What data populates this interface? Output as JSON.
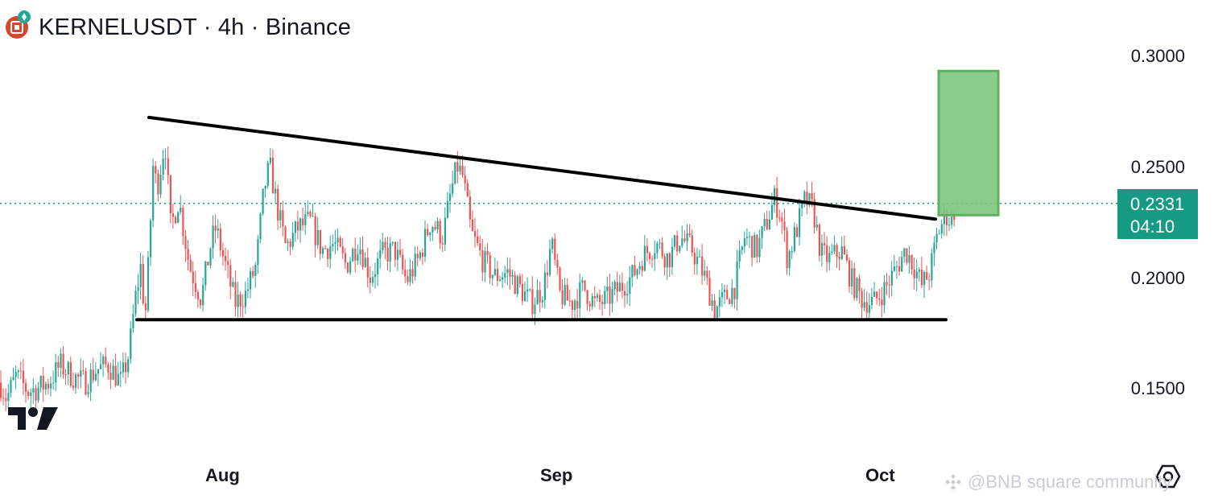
{
  "header": {
    "title": "KERNELUSDT · 4h · Binance"
  },
  "price_axis": {
    "ticks": [
      "0.3000",
      "0.2500",
      "0.2000",
      "0.1500"
    ]
  },
  "time_axis": {
    "ticks": [
      "Aug",
      "Sep",
      "Oct"
    ]
  },
  "last_price": {
    "price": "0.2331",
    "countdown": "04:10"
  },
  "watermark": {
    "text": "@BNB square community"
  },
  "icons": {
    "symbol": "kernel-logo-icon",
    "exchange_badge": "binance-badge-icon",
    "tradingview": "tradingview-logo-icon",
    "settings": "settings-hexagon-icon"
  },
  "colors": {
    "up": "#26a69a",
    "down": "#ef5350",
    "last_price_bg": "#169a83",
    "target_box": "#6cc070",
    "trendline": "#000000"
  },
  "chart_data": {
    "type": "candlestick",
    "symbol": "KERNELUSDT",
    "interval": "4h",
    "exchange": "Binance",
    "y_range": [
      0.12,
      0.31
    ],
    "last_price": 0.2331,
    "x_ticks": [
      "Aug",
      "Sep",
      "Oct"
    ],
    "y_ticks": [
      0.3,
      0.25,
      0.2,
      0.15
    ],
    "price_path": [
      [
        0,
        0.152
      ],
      [
        8,
        0.145
      ],
      [
        20,
        0.155
      ],
      [
        35,
        0.148
      ],
      [
        50,
        0.15
      ],
      [
        60,
        0.152
      ],
      [
        75,
        0.16
      ],
      [
        90,
        0.155
      ],
      [
        105,
        0.152
      ],
      [
        120,
        0.158
      ],
      [
        135,
        0.16
      ],
      [
        150,
        0.152
      ],
      [
        160,
        0.165
      ],
      [
        168,
        0.19
      ],
      [
        175,
        0.205
      ],
      [
        180,
        0.18
      ],
      [
        185,
        0.21
      ],
      [
        190,
        0.25
      ],
      [
        195,
        0.24
      ],
      [
        205,
        0.262
      ],
      [
        212,
        0.222
      ],
      [
        222,
        0.235
      ],
      [
        235,
        0.205
      ],
      [
        250,
        0.19
      ],
      [
        262,
        0.215
      ],
      [
        268,
        0.222
      ],
      [
        280,
        0.205
      ],
      [
        292,
        0.188
      ],
      [
        305,
        0.192
      ],
      [
        318,
        0.205
      ],
      [
        328,
        0.24
      ],
      [
        335,
        0.25
      ],
      [
        345,
        0.23
      ],
      [
        355,
        0.213
      ],
      [
        370,
        0.222
      ],
      [
        385,
        0.225
      ],
      [
        400,
        0.212
      ],
      [
        415,
        0.215
      ],
      [
        430,
        0.205
      ],
      [
        445,
        0.216
      ],
      [
        460,
        0.2
      ],
      [
        475,
        0.21
      ],
      [
        490,
        0.212
      ],
      [
        505,
        0.198
      ],
      [
        520,
        0.208
      ],
      [
        535,
        0.225
      ],
      [
        550,
        0.218
      ],
      [
        560,
        0.238
      ],
      [
        568,
        0.25
      ],
      [
        575,
        0.245
      ],
      [
        585,
        0.22
      ],
      [
        600,
        0.207
      ],
      [
        615,
        0.2
      ],
      [
        630,
        0.202
      ],
      [
        645,
        0.195
      ],
      [
        660,
        0.188
      ],
      [
        675,
        0.195
      ],
      [
        685,
        0.215
      ],
      [
        695,
        0.192
      ],
      [
        710,
        0.188
      ],
      [
        725,
        0.195
      ],
      [
        740,
        0.187
      ],
      [
        755,
        0.19
      ],
      [
        770,
        0.195
      ],
      [
        785,
        0.2
      ],
      [
        800,
        0.21
      ],
      [
        815,
        0.215
      ],
      [
        830,
        0.208
      ],
      [
        845,
        0.218
      ],
      [
        860,
        0.212
      ],
      [
        875,
        0.2
      ],
      [
        888,
        0.185
      ],
      [
        900,
        0.19
      ],
      [
        912,
        0.195
      ],
      [
        925,
        0.218
      ],
      [
        940,
        0.212
      ],
      [
        950,
        0.222
      ],
      [
        962,
        0.235
      ],
      [
        970,
        0.228
      ],
      [
        978,
        0.208
      ],
      [
        990,
        0.222
      ],
      [
        1000,
        0.235
      ],
      [
        1010,
        0.23
      ],
      [
        1020,
        0.21
      ],
      [
        1030,
        0.208
      ],
      [
        1045,
        0.212
      ],
      [
        1058,
        0.198
      ],
      [
        1070,
        0.19
      ],
      [
        1085,
        0.188
      ],
      [
        1100,
        0.195
      ],
      [
        1115,
        0.205
      ],
      [
        1125,
        0.212
      ],
      [
        1135,
        0.205
      ],
      [
        1145,
        0.196
      ],
      [
        1155,
        0.202
      ],
      [
        1165,
        0.22
      ],
      [
        1175,
        0.228
      ],
      [
        1182,
        0.225
      ],
      [
        1187,
        0.2331
      ]
    ],
    "annotations": {
      "descending_trendline": {
        "from": [
          185,
          0.272
        ],
        "to": [
          1162,
          0.226
        ]
      },
      "support_line": {
        "from": [
          170,
          0.1805
        ],
        "to": [
          1175,
          0.1805
        ]
      },
      "target_box": {
        "x_from": 1166,
        "x_to": 1240,
        "price_low": 0.2278,
        "price_high": 0.293
      },
      "last_price_line": 0.2331
    }
  }
}
